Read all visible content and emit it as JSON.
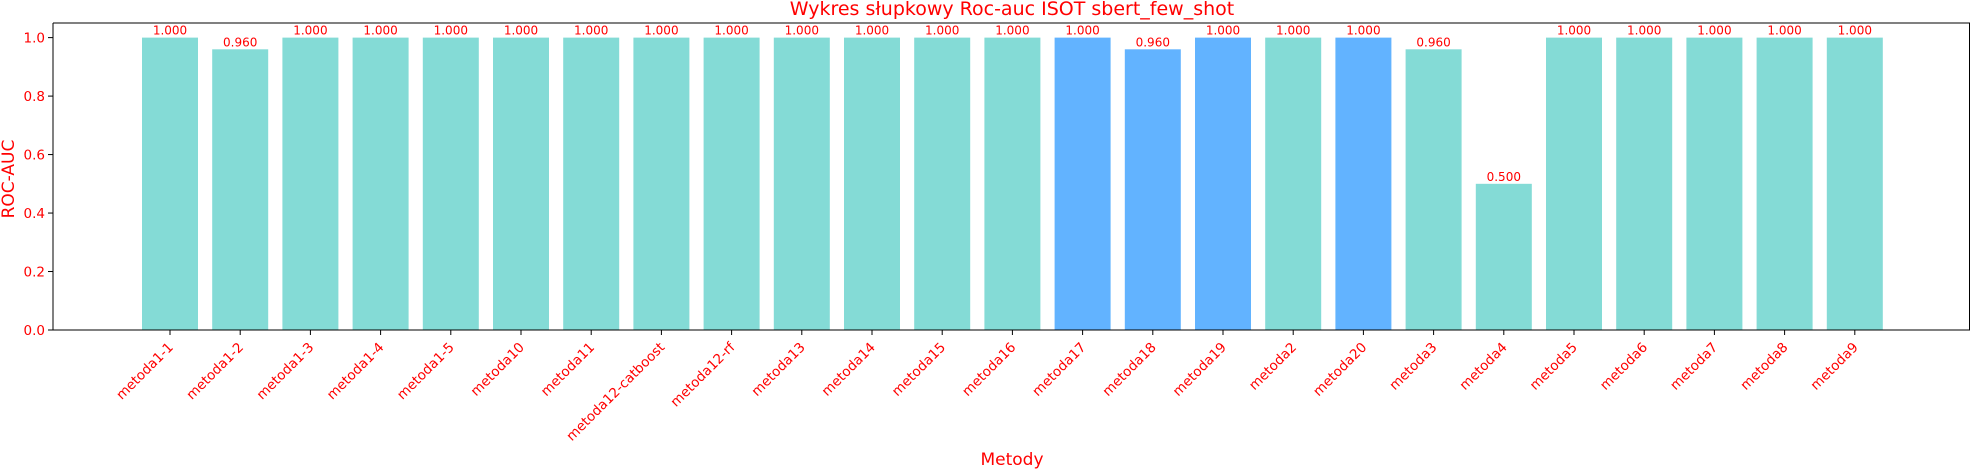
{
  "chart_data": {
    "type": "bar",
    "title": "Wykres słupkowy Roc-auc ISOT sbert_few_shot",
    "xlabel": "Metody",
    "ylabel": "ROC-AUC",
    "ylim": [
      0,
      1.05
    ],
    "yticks": [
      0.0,
      0.2,
      0.4,
      0.6,
      0.8,
      1.0
    ],
    "grid": false,
    "categories": [
      "metoda1-1",
      "metoda1-2",
      "metoda1-3",
      "metoda1-4",
      "metoda1-5",
      "metoda10",
      "metoda11",
      "metoda12-catboost",
      "metoda12-rf",
      "metoda13",
      "metoda14",
      "metoda15",
      "metoda16",
      "metoda17",
      "metoda18",
      "metoda19",
      "metoda2",
      "metoda20",
      "metoda3",
      "metoda4",
      "metoda5",
      "metoda6",
      "metoda7",
      "metoda8",
      "metoda9"
    ],
    "values": [
      1.0,
      0.96,
      1.0,
      1.0,
      1.0,
      1.0,
      1.0,
      1.0,
      1.0,
      1.0,
      1.0,
      1.0,
      1.0,
      1.0,
      0.96,
      1.0,
      1.0,
      1.0,
      0.96,
      0.5,
      1.0,
      1.0,
      1.0,
      1.0,
      1.0
    ],
    "data_labels": [
      "1.000",
      "0.960",
      "1.000",
      "1.000",
      "1.000",
      "1.000",
      "1.000",
      "1.000",
      "1.000",
      "1.000",
      "1.000",
      "1.000",
      "1.000",
      "1.000",
      "0.960",
      "1.000",
      "1.000",
      "1.000",
      "0.960",
      "0.500",
      "1.000",
      "1.000",
      "1.000",
      "1.000",
      "1.000"
    ],
    "highlighted": [
      "metoda17",
      "metoda18",
      "metoda19",
      "metoda20"
    ],
    "colors": {
      "bar": "#84dbd6",
      "highlight": "#62b3ff",
      "text": "#ff0000",
      "axis": "#000000"
    }
  }
}
